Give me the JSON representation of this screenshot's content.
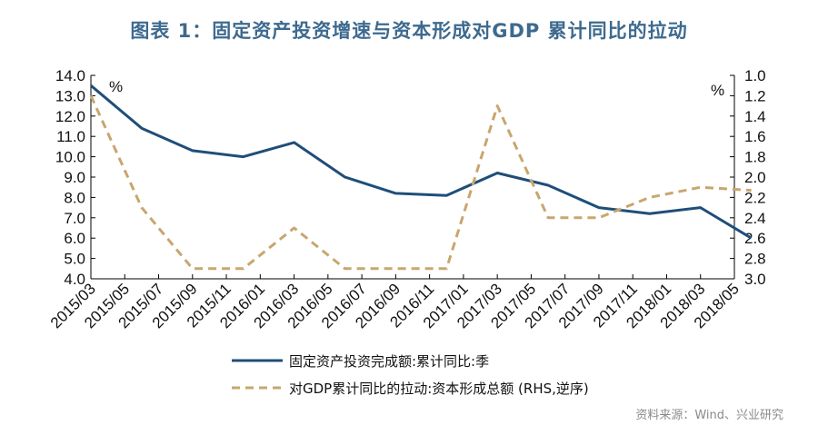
{
  "title": "图表 1：固定资产投资增速与资本形成对GDP 累计同比的拉动",
  "source": "资料来源：Wind、兴业研究",
  "colors": {
    "series1": "#1f4e79",
    "series2": "#c8a66e",
    "title": "#3d6a8f"
  },
  "chart_data": {
    "type": "line",
    "x": [
      "2015/03",
      "2015/05",
      "2015/07",
      "2015/09",
      "2015/11",
      "2016/01",
      "2016/03",
      "2016/05",
      "2016/07",
      "2016/09",
      "2016/11",
      "2017/01",
      "2017/03",
      "2017/05",
      "2017/07",
      "2017/09",
      "2017/11",
      "2018/01",
      "2018/03",
      "2018/05"
    ],
    "left_axis": {
      "unit": "%",
      "min": 4.0,
      "max": 14.0,
      "ticks": [
        "4.0",
        "5.0",
        "6.0",
        "7.0",
        "8.0",
        "9.0",
        "10.0",
        "11.0",
        "12.0",
        "13.0",
        "14.0"
      ]
    },
    "right_axis": {
      "unit": "%",
      "min": 1.0,
      "max": 3.0,
      "reversed": true,
      "ticks": [
        "1.0",
        "1.2",
        "1.4",
        "1.6",
        "1.8",
        "2.0",
        "2.2",
        "2.4",
        "2.6",
        "2.8",
        "3.0"
      ]
    },
    "series": [
      {
        "name": "固定资产投资完成额:累计同比:季",
        "axis": "left",
        "style": "solid",
        "x": [
          "2015/03",
          "2015/06",
          "2015/09",
          "2015/12",
          "2016/03",
          "2016/06",
          "2016/09",
          "2016/12",
          "2017/03",
          "2017/06",
          "2017/09",
          "2017/12",
          "2018/03",
          "2018/06"
        ],
        "values": [
          13.5,
          11.4,
          10.3,
          10.0,
          10.7,
          9.0,
          8.2,
          8.1,
          9.2,
          8.6,
          7.5,
          7.2,
          7.5,
          6.0
        ]
      },
      {
        "name": "对GDP累计同比的拉动:资本形成总额 (RHS,逆序)",
        "axis": "right",
        "style": "dashed",
        "x": [
          "2015/03",
          "2015/06",
          "2015/09",
          "2015/12",
          "2016/03",
          "2016/06",
          "2016/09",
          "2016/12",
          "2017/03",
          "2017/06",
          "2017/09",
          "2017/12",
          "2018/03",
          "2018/06"
        ],
        "values": [
          1.2,
          2.3,
          2.9,
          2.9,
          2.5,
          2.9,
          2.9,
          2.9,
          1.3,
          2.4,
          2.4,
          2.2,
          2.1,
          2.13
        ]
      }
    ],
    "grid": false,
    "legend": "bottom"
  }
}
